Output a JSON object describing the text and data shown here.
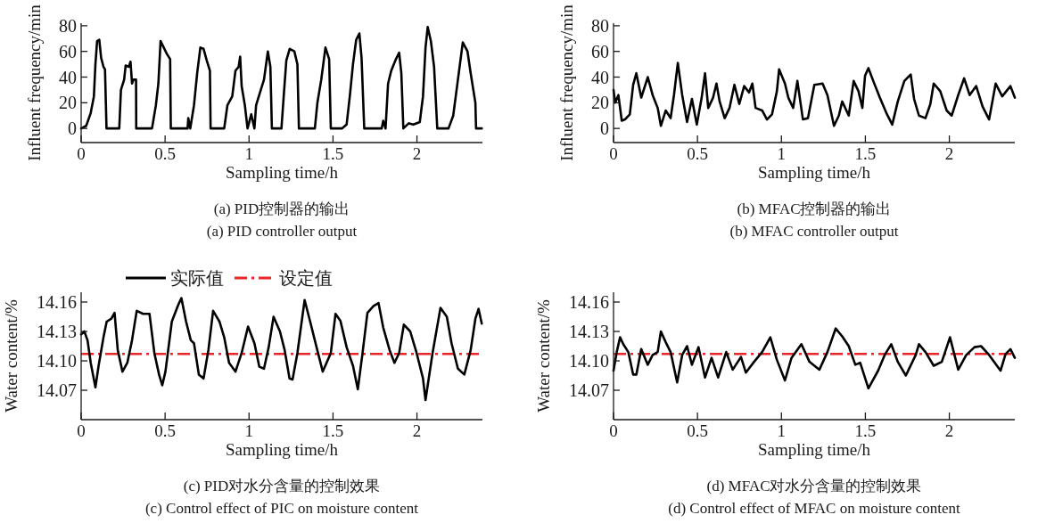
{
  "chart_data": [
    {
      "type": "line",
      "title": "(a) PID控制器的输出",
      "subtitle": "(a) PID controller output",
      "xlabel": "Sampling time/h",
      "ylabel": "Influent frequency/min",
      "xlim": [
        0,
        2.39
      ],
      "ylim": [
        -11,
        82
      ],
      "xticks": [
        0,
        0.5,
        1,
        1.5,
        2
      ],
      "yticks": [
        0,
        20,
        40,
        60,
        80
      ],
      "grid": false,
      "legend": false,
      "marker": "none",
      "line_style": "solid",
      "series": [
        {
          "color": "#000000",
          "x": [
            0,
            0.03,
            0.057,
            0.076,
            0.085,
            0.095,
            0.108,
            0.119,
            0.133,
            0.142,
            0.151,
            0.227,
            0.237,
            0.256,
            0.265,
            0.284,
            0.294,
            0.303,
            0.312,
            0.327,
            0.328,
            0.422,
            0.445,
            0.46,
            0.473,
            0.492,
            0.511,
            0.53,
            0.534,
            0.634,
            0.638,
            0.65,
            0.672,
            0.691,
            0.71,
            0.729,
            0.748,
            0.767,
            0.771,
            0.852,
            0.871,
            0.9,
            0.919,
            0.938,
            0.947,
            0.956,
            0.975,
            0.991,
            1.013,
            1.032,
            1.042,
            1.07,
            1.089,
            1.112,
            1.127,
            1.136,
            1.193,
            1.208,
            1.222,
            1.242,
            1.27,
            1.288,
            1.297,
            1.392,
            1.407,
            1.43,
            1.455,
            1.477,
            1.487,
            1.553,
            1.581,
            1.6,
            1.619,
            1.638,
            1.657,
            1.67,
            1.686,
            1.79,
            1.799,
            1.813,
            1.828,
            1.847,
            1.875,
            1.894,
            1.907,
            1.919,
            1.951,
            1.979,
            2.017,
            2.036,
            2.051,
            2.064,
            2.083,
            2.102,
            2.121,
            2.188,
            2.216,
            2.244,
            2.273,
            2.301,
            2.32,
            2.348,
            2.352,
            2.386
          ],
          "values": [
            0,
            2,
            12,
            25,
            50,
            68,
            69,
            55,
            48,
            46,
            0,
            0,
            30,
            38,
            49,
            48,
            52,
            35,
            38,
            38,
            0,
            0,
            18,
            35,
            68,
            63,
            58,
            54,
            0,
            0,
            8,
            0,
            18,
            43,
            63,
            62,
            53,
            45,
            0,
            0,
            18,
            25,
            45,
            48,
            56,
            33,
            18,
            0,
            11,
            0,
            18,
            30,
            38,
            60,
            48,
            0,
            0,
            28,
            53,
            62,
            60,
            50,
            0,
            0,
            20,
            38,
            63,
            54,
            0,
            0,
            3,
            25,
            50,
            69,
            74,
            55,
            0,
            0,
            6,
            0,
            35,
            45,
            54,
            59,
            43,
            0,
            4,
            3,
            5,
            25,
            63,
            79,
            68,
            48,
            0,
            0,
            10,
            38,
            67,
            60,
            43,
            20,
            0,
            0
          ]
        }
      ]
    },
    {
      "type": "line",
      "title": "(b) MFAC控制器的输出",
      "subtitle": "(b) MFAC controller output",
      "xlabel": "Sampling time/h",
      "ylabel": "Influent frequency/min",
      "xlim": [
        0,
        2.39
      ],
      "ylim": [
        -11,
        82
      ],
      "xticks": [
        0,
        0.5,
        1,
        1.5,
        2
      ],
      "yticks": [
        0,
        20,
        40,
        60,
        80
      ],
      "grid": false,
      "legend": false,
      "marker": "none",
      "line_style": "solid",
      "series": [
        {
          "color": "#000000",
          "x": [
            0,
            0.01,
            0.029,
            0.049,
            0.068,
            0.097,
            0.117,
            0.136,
            0.165,
            0.204,
            0.233,
            0.263,
            0.282,
            0.311,
            0.34,
            0.36,
            0.383,
            0.409,
            0.438,
            0.467,
            0.496,
            0.525,
            0.545,
            0.564,
            0.593,
            0.613,
            0.632,
            0.662,
            0.691,
            0.72,
            0.749,
            0.778,
            0.807,
            0.827,
            0.846,
            0.885,
            0.914,
            0.944,
            0.973,
            0.986,
            1.021,
            1.041,
            1.07,
            1.095,
            1.128,
            1.158,
            1.196,
            1.245,
            1.274,
            1.313,
            1.342,
            1.362,
            1.401,
            1.43,
            1.459,
            1.482,
            1.498,
            1.518,
            1.547,
            1.586,
            1.625,
            1.66,
            1.693,
            1.732,
            1.77,
            1.79,
            1.819,
            1.858,
            1.887,
            1.907,
            1.946,
            1.984,
            2.014,
            2.053,
            2.088,
            2.121,
            2.16,
            2.198,
            2.237,
            2.276,
            2.315,
            2.364,
            2.39
          ],
          "values": [
            30,
            20,
            26,
            6,
            7,
            11,
            34,
            43,
            24,
            40,
            26,
            16,
            2,
            14,
            8,
            26,
            51,
            26,
            5,
            23,
            3,
            24,
            43,
            16,
            24,
            35,
            21,
            8,
            16,
            34,
            19,
            33,
            28,
            35,
            16,
            14,
            7,
            11,
            29,
            46,
            35,
            24,
            16,
            37,
            7,
            8,
            34,
            35,
            26,
            2,
            10,
            21,
            10,
            37,
            29,
            16,
            41,
            47,
            37,
            24,
            12,
            3,
            21,
            37,
            42,
            23,
            10,
            8,
            19,
            35,
            29,
            14,
            10,
            26,
            39,
            26,
            33,
            17,
            7,
            35,
            25,
            33,
            24
          ]
        }
      ]
    },
    {
      "type": "line",
      "title": "(c) PID对水分含量的控制效果",
      "subtitle": "(c) Control effect of PIC on moisture content",
      "xlabel": "Sampling time/h",
      "ylabel": "Water content/%",
      "xlim": [
        0,
        2.39
      ],
      "ylim": [
        14.04,
        14.17
      ],
      "xticks": [
        0,
        0.5,
        1,
        1.5,
        2
      ],
      "yticks": [
        {
          "value": 14.07,
          "label": "14.07"
        },
        {
          "value": 14.1,
          "label": "14.10"
        },
        {
          "value": 14.13,
          "label": "14.13"
        },
        {
          "value": 14.16,
          "label": "14.16"
        }
      ],
      "grid": false,
      "legend": "top",
      "marker": "none",
      "line_style": "solid",
      "ref_lines": [
        {
          "axis": "y",
          "value": 14.107,
          "label": "设定值",
          "color": "#e8262b",
          "line_style": "dashed"
        }
      ],
      "series": [
        {
          "name": "实际值",
          "color": "#000000",
          "x": [
            0,
            0.019,
            0.038,
            0.057,
            0.085,
            0.104,
            0.133,
            0.152,
            0.18,
            0.199,
            0.218,
            0.246,
            0.275,
            0.303,
            0.331,
            0.369,
            0.407,
            0.436,
            0.464,
            0.483,
            0.502,
            0.54,
            0.578,
            0.597,
            0.625,
            0.653,
            0.672,
            0.701,
            0.729,
            0.758,
            0.786,
            0.824,
            0.852,
            0.881,
            0.919,
            0.956,
            0.994,
            1.032,
            1.061,
            1.089,
            1.117,
            1.146,
            1.184,
            1.212,
            1.241,
            1.259,
            1.288,
            1.331,
            1.364,
            1.402,
            1.439,
            1.487,
            1.515,
            1.544,
            1.581,
            1.619,
            1.648,
            1.676,
            1.705,
            1.742,
            1.771,
            1.799,
            1.837,
            1.866,
            1.894,
            1.922,
            1.96,
            1.998,
            2.036,
            2.051,
            2.093,
            2.14,
            2.178,
            2.206,
            2.244,
            2.282,
            2.32,
            2.348,
            2.367,
            2.386
          ],
          "values": [
            14.127,
            14.13,
            14.121,
            14.098,
            14.073,
            14.095,
            14.124,
            14.14,
            14.143,
            14.149,
            14.111,
            14.089,
            14.098,
            14.121,
            14.151,
            14.148,
            14.148,
            14.108,
            14.086,
            14.075,
            14.089,
            14.14,
            14.157,
            14.164,
            14.14,
            14.121,
            14.118,
            14.086,
            14.082,
            14.111,
            14.151,
            14.14,
            14.124,
            14.098,
            14.089,
            14.108,
            14.135,
            14.118,
            14.094,
            14.092,
            14.114,
            14.145,
            14.13,
            14.111,
            14.082,
            14.081,
            14.108,
            14.162,
            14.14,
            14.114,
            14.089,
            14.108,
            14.148,
            14.141,
            14.114,
            14.095,
            14.071,
            14.108,
            14.149,
            14.156,
            14.159,
            14.134,
            14.111,
            14.098,
            14.108,
            14.137,
            14.13,
            14.108,
            14.082,
            14.06,
            14.108,
            14.154,
            14.145,
            14.118,
            14.092,
            14.086,
            14.111,
            14.143,
            14.153,
            14.138
          ]
        }
      ]
    },
    {
      "type": "line",
      "title": "(d) MFAC对水分含量的控制效果",
      "subtitle": "(d) Control effect of MFAC on moisture content",
      "xlabel": "Sampling time/h",
      "ylabel": "Water content/%",
      "xlim": [
        0,
        2.39
      ],
      "ylim": [
        14.04,
        14.17
      ],
      "xticks": [
        0,
        0.5,
        1,
        1.5,
        2
      ],
      "yticks": [
        {
          "value": 14.07,
          "label": "14.07"
        },
        {
          "value": 14.1,
          "label": "14.10"
        },
        {
          "value": 14.13,
          "label": "14.13"
        },
        {
          "value": 14.16,
          "label": "14.16"
        }
      ],
      "grid": false,
      "legend": false,
      "marker": "none",
      "line_style": "solid",
      "ref_lines": [
        {
          "axis": "y",
          "value": 14.107,
          "color": "#e8262b",
          "line_style": "dashed"
        }
      ],
      "series": [
        {
          "color": "#000000",
          "x": [
            0,
            0.019,
            0.039,
            0.058,
            0.088,
            0.117,
            0.136,
            0.165,
            0.204,
            0.233,
            0.263,
            0.282,
            0.311,
            0.34,
            0.379,
            0.409,
            0.438,
            0.467,
            0.506,
            0.545,
            0.584,
            0.623,
            0.671,
            0.71,
            0.759,
            0.788,
            0.837,
            0.885,
            0.934,
            0.973,
            1.021,
            1.06,
            1.119,
            1.167,
            1.226,
            1.274,
            1.323,
            1.362,
            1.401,
            1.44,
            1.469,
            1.518,
            1.576,
            1.615,
            1.654,
            1.693,
            1.741,
            1.8,
            1.819,
            1.858,
            1.907,
            1.955,
            2.004,
            2.053,
            2.101,
            2.15,
            2.189,
            2.237,
            2.305,
            2.335,
            2.364,
            2.39
          ],
          "values": [
            14.09,
            14.109,
            14.124,
            14.117,
            14.109,
            14.086,
            14.086,
            14.112,
            14.096,
            14.106,
            14.109,
            14.13,
            14.119,
            14.109,
            14.078,
            14.106,
            14.115,
            14.096,
            14.114,
            14.083,
            14.103,
            14.083,
            14.109,
            14.091,
            14.104,
            14.088,
            14.099,
            14.109,
            14.124,
            14.101,
            14.08,
            14.103,
            14.117,
            14.099,
            14.091,
            14.109,
            14.133,
            14.125,
            14.115,
            14.096,
            14.098,
            14.072,
            14.09,
            14.106,
            14.117,
            14.099,
            14.085,
            14.106,
            14.117,
            14.109,
            14.095,
            14.099,
            14.124,
            14.091,
            14.106,
            14.114,
            14.115,
            14.106,
            14.09,
            14.107,
            14.112,
            14.103
          ]
        }
      ]
    }
  ]
}
